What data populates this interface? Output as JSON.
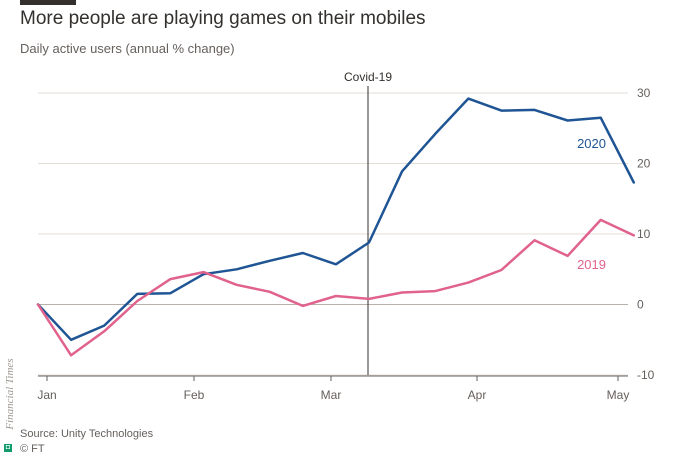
{
  "chart_data": {
    "type": "line",
    "title": "More people are playing games on their mobiles",
    "subtitle": "Daily active users (annual % change)",
    "ylim": [
      -10,
      30
    ],
    "yticks": [
      30,
      20,
      10,
      0,
      -10
    ],
    "xticks": [
      "Jan",
      "Feb",
      "Mar",
      "Apr",
      "May"
    ],
    "annotation": "Covid-19",
    "source": "Source: Unity Technologies",
    "credit": "© FT",
    "side_label": "Financial Times",
    "grid": true,
    "series": [
      {
        "name": "2020",
        "color": "#1f5594",
        "values": [
          0,
          -5,
          -3,
          1.5,
          1.6,
          4.3,
          5.0,
          6.2,
          7.3,
          5.7,
          8.8,
          18.9,
          24.2,
          29.2,
          27.5,
          27.6,
          26.1,
          26.5,
          17.3
        ]
      },
      {
        "name": "2019",
        "color": "#e0628d",
        "values": [
          0,
          -7.2,
          -3.8,
          0.5,
          3.6,
          4.6,
          2.8,
          1.8,
          -0.2,
          1.2,
          0.8,
          1.7,
          1.9,
          3.1,
          4.9,
          9.1,
          6.9,
          12.0,
          9.8
        ]
      }
    ]
  }
}
